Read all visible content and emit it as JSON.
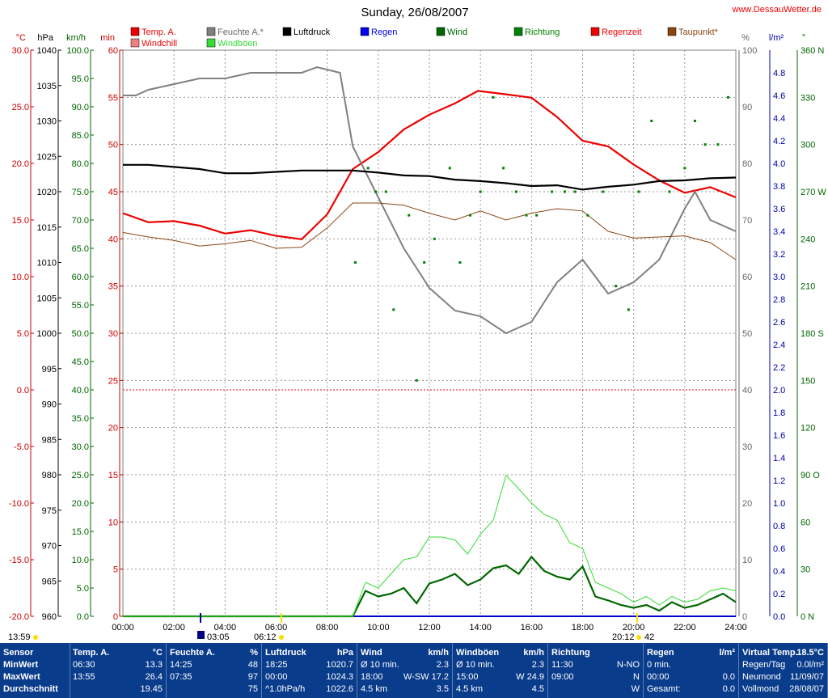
{
  "chart_data": {
    "type": "line",
    "title": "Sunday, 26/08/2007",
    "site": "www.DessauWetter.de",
    "x_axis": {
      "ticks": [
        "00:00",
        "02:00",
        "04:00",
        "06:00",
        "08:00",
        "10:00",
        "12:00",
        "14:00",
        "16:00",
        "18:00",
        "20:00",
        "22:00",
        "24:00"
      ],
      "range_hours": [
        0,
        24
      ]
    },
    "axes": {
      "temp_c": {
        "unit": "°C",
        "range": [
          -20,
          30
        ],
        "ticks": [
          "30.0",
          "25.0",
          "20.0",
          "15.0",
          "10.0",
          "5.0",
          "0.0",
          "-5.0",
          "-10.0",
          "-15.0",
          "-20.0"
        ],
        "color": "#cc0000"
      },
      "pressure_hpa": {
        "unit": "hPa",
        "range": [
          960,
          1040
        ],
        "ticks": [
          "1040",
          "1035",
          "1030",
          "1025",
          "1020",
          "1015",
          "1010",
          "1005",
          "1000",
          "995",
          "990",
          "985",
          "980",
          "975",
          "970",
          "965",
          "960"
        ],
        "color": "#000000"
      },
      "wind_kmh": {
        "unit": "km/h",
        "range": [
          0,
          100
        ],
        "ticks": [
          "100.0",
          "95.0",
          "90.0",
          "85.0",
          "80.0",
          "75.0",
          "70.0",
          "65.0",
          "60.0",
          "55.0",
          "50.0",
          "45.0",
          "40.0",
          "35.0",
          "30.0",
          "25.0",
          "20.0",
          "15.0",
          "10.0",
          "5.0",
          "0.0"
        ],
        "color": "#006600"
      },
      "rain_min": {
        "unit": "min",
        "range": [
          0,
          60
        ],
        "ticks": [
          "60",
          "55",
          "50",
          "45",
          "40",
          "35",
          "30",
          "25",
          "20",
          "15",
          "10",
          "5",
          "0"
        ],
        "color": "#cc0000"
      },
      "humidity_pct": {
        "unit": "%",
        "range": [
          0,
          100
        ],
        "ticks": [
          "100",
          "90",
          "80",
          "70",
          "60",
          "50",
          "40",
          "30",
          "20",
          "10",
          "0"
        ],
        "color": "#666666"
      },
      "rain_lm2": {
        "unit": "l/m²",
        "range": [
          0,
          5
        ],
        "ticks": [
          "4.8",
          "4.6",
          "4.4",
          "4.2",
          "4.0",
          "3.8",
          "3.6",
          "3.4",
          "3.2",
          "3.0",
          "2.8",
          "2.6",
          "2.4",
          "2.2",
          "2.0",
          "1.8",
          "1.6",
          "1.4",
          "1.2",
          "1.0",
          "0.8",
          "0.6",
          "0.4",
          "0.2",
          "0.0"
        ],
        "color": "#0000aa"
      },
      "direction_deg": {
        "unit": "°",
        "range": [
          0,
          360
        ],
        "ticks": [
          "360 N",
          "330",
          "300",
          "270 W",
          "240",
          "210",
          "180 S",
          "150",
          "120",
          "90 O",
          "60",
          "30",
          "0 N"
        ],
        "color": "#006600"
      }
    },
    "legend": [
      {
        "name": "Temp. A.",
        "color": "#ee0000"
      },
      {
        "name": "Windchill",
        "color": "#f08080"
      },
      {
        "name": "Feuchte A.*",
        "color": "#808080"
      },
      {
        "name": "Windböen",
        "color": "#33dd33"
      },
      {
        "name": "Luftdruck",
        "color": "#000000"
      },
      {
        "name": "Regen",
        "color": "#0000ee"
      },
      {
        "name": "Wind",
        "color": "#006600"
      },
      {
        "name": "Richtung",
        "color": "#008000"
      },
      {
        "name": "Regenzeit",
        "color": "#ee0000"
      },
      {
        "name": "Taupunkt*",
        "color": "#8b4513"
      }
    ],
    "series": [
      {
        "name": "Temp. A.",
        "axis": "temp_c",
        "x": [
          0,
          1,
          2,
          3,
          4,
          5,
          6,
          7,
          8,
          9,
          10,
          11,
          12,
          13,
          13.9,
          15,
          16,
          17,
          18,
          19,
          20,
          21,
          22,
          23,
          24
        ],
        "values": [
          15.6,
          14.8,
          14.9,
          14.5,
          13.8,
          14.1,
          13.6,
          13.3,
          15.5,
          19.5,
          21.0,
          23.0,
          24.3,
          25.3,
          26.4,
          26.1,
          25.8,
          24.1,
          22.0,
          21.5,
          19.9,
          18.5,
          17.4,
          17.9,
          17.0
        ]
      },
      {
        "name": "Feuchte A.*",
        "axis": "humidity_pct",
        "x": [
          0,
          0.5,
          1,
          2,
          3,
          4,
          5,
          6,
          7,
          7.6,
          8.5,
          9,
          10,
          11,
          12,
          13,
          14,
          15,
          16,
          17,
          18,
          19,
          20,
          21,
          22,
          22.4,
          23,
          24
        ],
        "values": [
          92,
          92,
          93,
          94,
          95,
          95,
          96,
          96,
          96,
          97,
          96,
          83,
          74,
          65,
          58,
          54,
          53,
          50,
          52,
          59,
          63,
          57,
          59,
          63,
          72,
          75,
          70,
          68
        ]
      },
      {
        "name": "Luftdruck",
        "axis": "pressure_hpa",
        "x": [
          0,
          1,
          2,
          3,
          4,
          5,
          6,
          7,
          8,
          9,
          10,
          11,
          12,
          13,
          14,
          15,
          16,
          17,
          18,
          19,
          20,
          21,
          22,
          23,
          24
        ],
        "values": [
          1023.8,
          1023.8,
          1023.5,
          1023.2,
          1022.6,
          1022.6,
          1022.8,
          1023.0,
          1023.0,
          1023.0,
          1022.7,
          1022.3,
          1022.2,
          1021.7,
          1021.5,
          1021.2,
          1020.8,
          1020.9,
          1020.3,
          1020.7,
          1021.0,
          1021.5,
          1021.6,
          1021.9,
          1022.0
        ]
      },
      {
        "name": "Taupunkt*",
        "axis": "temp_c",
        "x": [
          0,
          1,
          2,
          3,
          4,
          5,
          6,
          7,
          8,
          9,
          10,
          11,
          12,
          13,
          14,
          15,
          16,
          17,
          18,
          19,
          20,
          21,
          22,
          23,
          24
        ],
        "values": [
          13.9,
          13.5,
          13.2,
          12.7,
          12.9,
          13.2,
          12.5,
          12.6,
          14.3,
          16.5,
          16.5,
          16.3,
          15.6,
          15.0,
          15.8,
          15.0,
          15.6,
          16.0,
          15.8,
          14.0,
          13.4,
          13.5,
          13.6,
          13.0,
          11.5
        ]
      },
      {
        "name": "Wind",
        "axis": "wind_kmh",
        "x": [
          0,
          9,
          9.5,
          10,
          10.5,
          11,
          11.5,
          12,
          12.5,
          13,
          13.5,
          14,
          14.5,
          15,
          15.5,
          16,
          16.5,
          17,
          17.5,
          18,
          18.5,
          19,
          19.5,
          20,
          20.5,
          21,
          21.5,
          22,
          22.5,
          23,
          23.5,
          24
        ],
        "values": [
          0,
          0,
          4.5,
          3.5,
          4.0,
          5.0,
          2.3,
          5.8,
          6.5,
          7.5,
          5.5,
          6.5,
          8.5,
          9.0,
          7.5,
          10.5,
          8.0,
          7.0,
          6.5,
          8.8,
          3.5,
          2.8,
          2.0,
          1.5,
          2.0,
          1.0,
          2.5,
          1.5,
          2.0,
          3.0,
          4.0,
          2.5
        ]
      },
      {
        "name": "Windböen",
        "axis": "wind_kmh",
        "x": [
          0,
          9,
          9.5,
          10,
          10.5,
          11,
          11.5,
          12,
          12.5,
          13,
          13.5,
          14,
          14.5,
          15,
          15.5,
          16,
          16.5,
          17,
          17.5,
          18,
          18.5,
          19,
          19.5,
          20,
          20.5,
          21,
          21.5,
          22,
          22.5,
          23,
          23.5,
          24
        ],
        "values": [
          0,
          0,
          6.0,
          5.0,
          7.5,
          10.0,
          10.5,
          14.0,
          14.0,
          13.5,
          11.0,
          14.5,
          17.0,
          24.9,
          22.5,
          20.0,
          18.0,
          17.0,
          13.0,
          12.0,
          6.0,
          5.0,
          4.0,
          2.5,
          3.5,
          2.0,
          3.5,
          2.5,
          3.0,
          4.5,
          5.0,
          4.5
        ]
      },
      {
        "name": "Richtung",
        "axis": "direction_deg",
        "type": "scatter",
        "x": [
          9.1,
          9.6,
          9.9,
          10.3,
          10.6,
          11.2,
          11.5,
          11.8,
          12.2,
          12.8,
          13.2,
          13.6,
          14.0,
          14.5,
          14.9,
          15.4,
          15.8,
          16.2,
          16.8,
          17.3,
          17.7,
          18.2,
          18.8,
          19.3,
          19.8,
          20.2,
          20.7,
          21.4,
          22.0,
          22.4,
          22.8,
          23.3,
          23.7
        ],
        "values": [
          225,
          285,
          270,
          270,
          195,
          255,
          150,
          225,
          240,
          285,
          225,
          255,
          270,
          330,
          285,
          270,
          255,
          255,
          270,
          270,
          270,
          255,
          270,
          210,
          195,
          270,
          315,
          270,
          285,
          315,
          300,
          300,
          330
        ]
      }
    ]
  },
  "markers": {
    "left": "13:59",
    "sunrise": "06:12",
    "moon": "03:05",
    "sunset": "20:12",
    "sunset_suffix": "42"
  },
  "footer": {
    "row_labels": [
      "Sensor",
      "MinWert",
      "MaxWert",
      "Durchschnitt"
    ],
    "blocks": [
      {
        "title": "Temp. A.",
        "unit": "°C",
        "rows": [
          [
            "06:30",
            "13.3"
          ],
          [
            "13:55",
            "26.4"
          ],
          [
            "",
            "19.45"
          ]
        ]
      },
      {
        "title": "Feuchte A.",
        "unit": "%",
        "rows": [
          [
            "14:25",
            "48"
          ],
          [
            "07:35",
            "97"
          ],
          [
            "",
            "75"
          ]
        ]
      },
      {
        "title": "Luftdruck",
        "unit": "hPa",
        "rows": [
          [
            "18:25",
            "1020.7"
          ],
          [
            "00:00",
            "1024.3"
          ],
          [
            "^1.0hPa/h",
            "1022.6"
          ]
        ]
      },
      {
        "title": "Wind",
        "unit": "km/h",
        "rows": [
          [
            "Ø 10 min.",
            "2.3"
          ],
          [
            "18:00",
            "W-SW 17.2"
          ],
          [
            "4.5 km",
            "3.5"
          ]
        ]
      },
      {
        "title": "Windböen",
        "unit": "km/h",
        "rows": [
          [
            "Ø 10 min.",
            "2.3"
          ],
          [
            "15:00",
            "W 24.9"
          ],
          [
            "4.5 km",
            "4.5"
          ]
        ]
      },
      {
        "title": "Richtung",
        "unit": "",
        "rows": [
          [
            "11:30",
            "N-NO"
          ],
          [
            "09:00",
            "N"
          ],
          [
            "",
            "W"
          ]
        ]
      },
      {
        "title": "Regen",
        "unit": "l/m²",
        "rows": [
          [
            "0 min.",
            ""
          ],
          [
            "00:00",
            "0.0"
          ],
          [
            "Gesamt:",
            "0.0"
          ]
        ]
      },
      {
        "title": "Virtual Temp.",
        "unit": "18.5°C",
        "rows": [
          [
            "Regen/Tag",
            "0.0l/m²"
          ],
          [
            "Neumond",
            "11/09/07"
          ],
          [
            "Vollmond",
            "28/08/07"
          ]
        ]
      }
    ]
  }
}
